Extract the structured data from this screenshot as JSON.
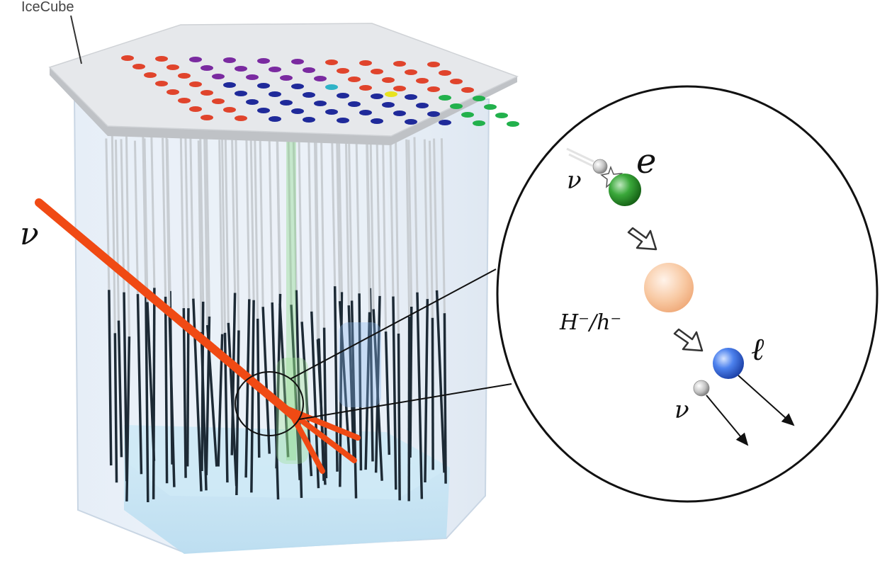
{
  "detector": {
    "label": "IceCube",
    "incoming_particle": "ν"
  },
  "inset": {
    "incoming": "ν",
    "target": "e",
    "intermediate": "H⁻/h⁻",
    "final_lepton": "ℓ",
    "final_neutrino": "ν"
  },
  "colors": {
    "track": "#f04a14",
    "electron": "#2e8b2e",
    "higgs": "#f7b98a",
    "lepton": "#3a6fe0",
    "neutrino": "#b9b9b9",
    "strings_upper": "#c8cdd2",
    "strings_lower": "#1d2a35",
    "dom_red": "#e0442c",
    "dom_purple": "#7a2aa0",
    "dom_blue": "#1f2a9a",
    "dom_cyan": "#2fb3c7",
    "dom_green": "#22b14c",
    "dom_yellow": "#e8e320"
  }
}
